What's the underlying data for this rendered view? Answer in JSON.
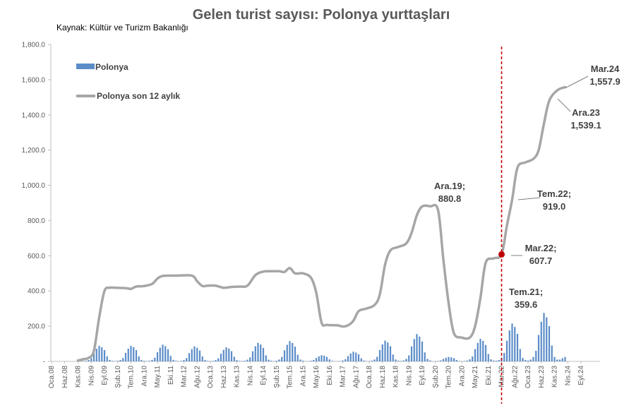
{
  "chart_data": {
    "type": "bar+line",
    "title": "Gelen turist sayısı: Polonya yurttaşları",
    "subtitle": "Kaynak: Kültür ve Turizm Bakanlığı",
    "xlabel": "",
    "ylabel": "",
    "ylim": [
      0,
      1800
    ],
    "yticks": [
      "-",
      "200.0",
      "400.0",
      "600.0",
      "800.0",
      "1,000.0",
      "1,200.0",
      "1,400.0",
      "1,600.0",
      "1,800.0"
    ],
    "start_month": "Oca.08",
    "xtick_labels": [
      "Oca.08",
      "Haz.08",
      "Kas.08",
      "Nis.09",
      "Eyl.09",
      "Şub.10",
      "Tem.10",
      "Ara.10",
      "May.11",
      "Eki.11",
      "Mar.12",
      "Ağu.12",
      "Oca.13",
      "Haz.13",
      "Kas.13",
      "Nis.14",
      "Eyl.14",
      "Şub.15",
      "Tem.15",
      "Ara.15",
      "May.16",
      "Eki.16",
      "Mar.17",
      "Ağu.17",
      "Oca.18",
      "Haz.18",
      "Kas.18",
      "Nis.19",
      "Eyl.19",
      "Şub.20",
      "Tem.20",
      "Ara.20",
      "May.21",
      "Eki.21",
      "Mar.22",
      "Ağu.22",
      "Oca.23",
      "Haz.23",
      "Kas.23",
      "Nis.24",
      "Eyl.24"
    ],
    "legend": {
      "bars": "Polonya",
      "line": "Polonya son 12 aylık",
      "position": "top-left"
    },
    "grid": false,
    "colors": {
      "bars": "#5b8cc8",
      "line": "#a6a6a6",
      "marker": "#c00000",
      "vline": "#c00000",
      "text": "#404040"
    },
    "monthly_pattern": [
      1,
      2,
      5,
      12,
      30,
      45,
      55,
      50,
      40,
      18,
      5,
      2
    ],
    "yearly_peaks": [
      {
        "year": 2008,
        "peak": 0
      },
      {
        "year": 2009,
        "peak": 88
      },
      {
        "year": 2010,
        "peak": 88
      },
      {
        "year": 2011,
        "peak": 95
      },
      {
        "year": 2012,
        "peak": 85
      },
      {
        "year": 2013,
        "peak": 80
      },
      {
        "year": 2014,
        "peak": 105
      },
      {
        "year": 2015,
        "peak": 115
      },
      {
        "year": 2016,
        "peak": 35
      },
      {
        "year": 2017,
        "peak": 55
      },
      {
        "year": 2018,
        "peak": 118
      },
      {
        "year": 2019,
        "peak": 155
      },
      {
        "year": 2020,
        "peak": 25
      },
      {
        "year": 2021,
        "peak": 128
      },
      {
        "year": 2022,
        "peak": 215
      },
      {
        "year": 2023,
        "peak": 275
      },
      {
        "year": 2024,
        "peak": 0
      }
    ],
    "bars_end_month": "Mar.24",
    "line_points": [
      [
        "Kas.08",
        5
      ],
      [
        "Oca.09",
        12
      ],
      [
        "Mar.09",
        20
      ],
      [
        "May.09",
        60
      ],
      [
        "Tem.09",
        250
      ],
      [
        "Eyl.09",
        400
      ],
      [
        "Kas.09",
        418
      ],
      [
        "Oca.10",
        418
      ],
      [
        "May.10",
        416
      ],
      [
        "Tem.10",
        412
      ],
      [
        "Eyl.10",
        425
      ],
      [
        "Ara.10",
        428
      ],
      [
        "Mar.11",
        440
      ],
      [
        "May.11",
        470
      ],
      [
        "Tem.11",
        485
      ],
      [
        "Ara.11",
        487
      ],
      [
        "Haz.12",
        487
      ],
      [
        "Ağu.12",
        455
      ],
      [
        "Eki.12",
        428
      ],
      [
        "Ara.12",
        430
      ],
      [
        "Mar.13",
        430
      ],
      [
        "Haz.13",
        418
      ],
      [
        "Eyl.13",
        423
      ],
      [
        "Ara.13",
        425
      ],
      [
        "Mar.14",
        430
      ],
      [
        "Haz.14",
        490
      ],
      [
        "Eyl.14",
        510
      ],
      [
        "Ara.14",
        512
      ],
      [
        "Mar.15",
        512
      ],
      [
        "May.15",
        508
      ],
      [
        "Tem.15",
        530
      ],
      [
        "Eyl.15",
        500
      ],
      [
        "Ara.15",
        500
      ],
      [
        "Mar.16",
        475
      ],
      [
        "May.16",
        390
      ],
      [
        "Tem.16",
        220
      ],
      [
        "Eyl.16",
        207
      ],
      [
        "Oca.17",
        205
      ],
      [
        "Mar.17",
        198
      ],
      [
        "May.17",
        205
      ],
      [
        "Tem.17",
        230
      ],
      [
        "Eyl.17",
        285
      ],
      [
        "Ara.17",
        300
      ],
      [
        "Mar.18",
        320
      ],
      [
        "May.18",
        380
      ],
      [
        "Tem.18",
        550
      ],
      [
        "Eyl.18",
        630
      ],
      [
        "Ara.18",
        650
      ],
      [
        "Mar.19",
        670
      ],
      [
        "May.19",
        730
      ],
      [
        "Tem.19",
        830
      ],
      [
        "Eyl.19",
        880
      ],
      [
        "Ara.19",
        880.8
      ],
      [
        "Mar.20",
        860
      ],
      [
        "May.20",
        580
      ],
      [
        "Tem.20",
        330
      ],
      [
        "Eyl.20",
        160
      ],
      [
        "Ara.20",
        135
      ],
      [
        "Mar.21",
        135
      ],
      [
        "May.21",
        200
      ],
      [
        "Tem.21",
        359.6
      ],
      [
        "Eyl.21",
        560
      ],
      [
        "Ara.21",
        585
      ],
      [
        "Mar.22",
        607.7
      ],
      [
        "May.22",
        770
      ],
      [
        "Tem.22",
        919.0
      ],
      [
        "Eyl.22",
        1100
      ],
      [
        "Ara.22",
        1130
      ],
      [
        "Mar.23",
        1150
      ],
      [
        "May.23",
        1200
      ],
      [
        "Tem.23",
        1350
      ],
      [
        "Eyl.23",
        1480
      ],
      [
        "Ara.23",
        1539.1
      ],
      [
        "Mar.24",
        1557.9
      ]
    ],
    "marker_point": [
      "Mar.22",
      607.7
    ],
    "vline_at": "Mar.22",
    "annotations": [
      {
        "point": "Ara.19",
        "line1": "Ara.19;",
        "line2": "880.8"
      },
      {
        "point": "Tem.21",
        "line1": "Tem.21;",
        "line2": "359.6"
      },
      {
        "point": "Mar.22",
        "line1": "Mar.22;",
        "line2": "607.7"
      },
      {
        "point": "Tem.22",
        "line1": "Tem.22;",
        "line2": "919.0"
      },
      {
        "point": "Ara.23",
        "line1": "Ara.23",
        "line2": "1,539.1"
      },
      {
        "point": "Mar.24",
        "line1": "Mar.24",
        "line2": "1,557.9"
      }
    ]
  }
}
